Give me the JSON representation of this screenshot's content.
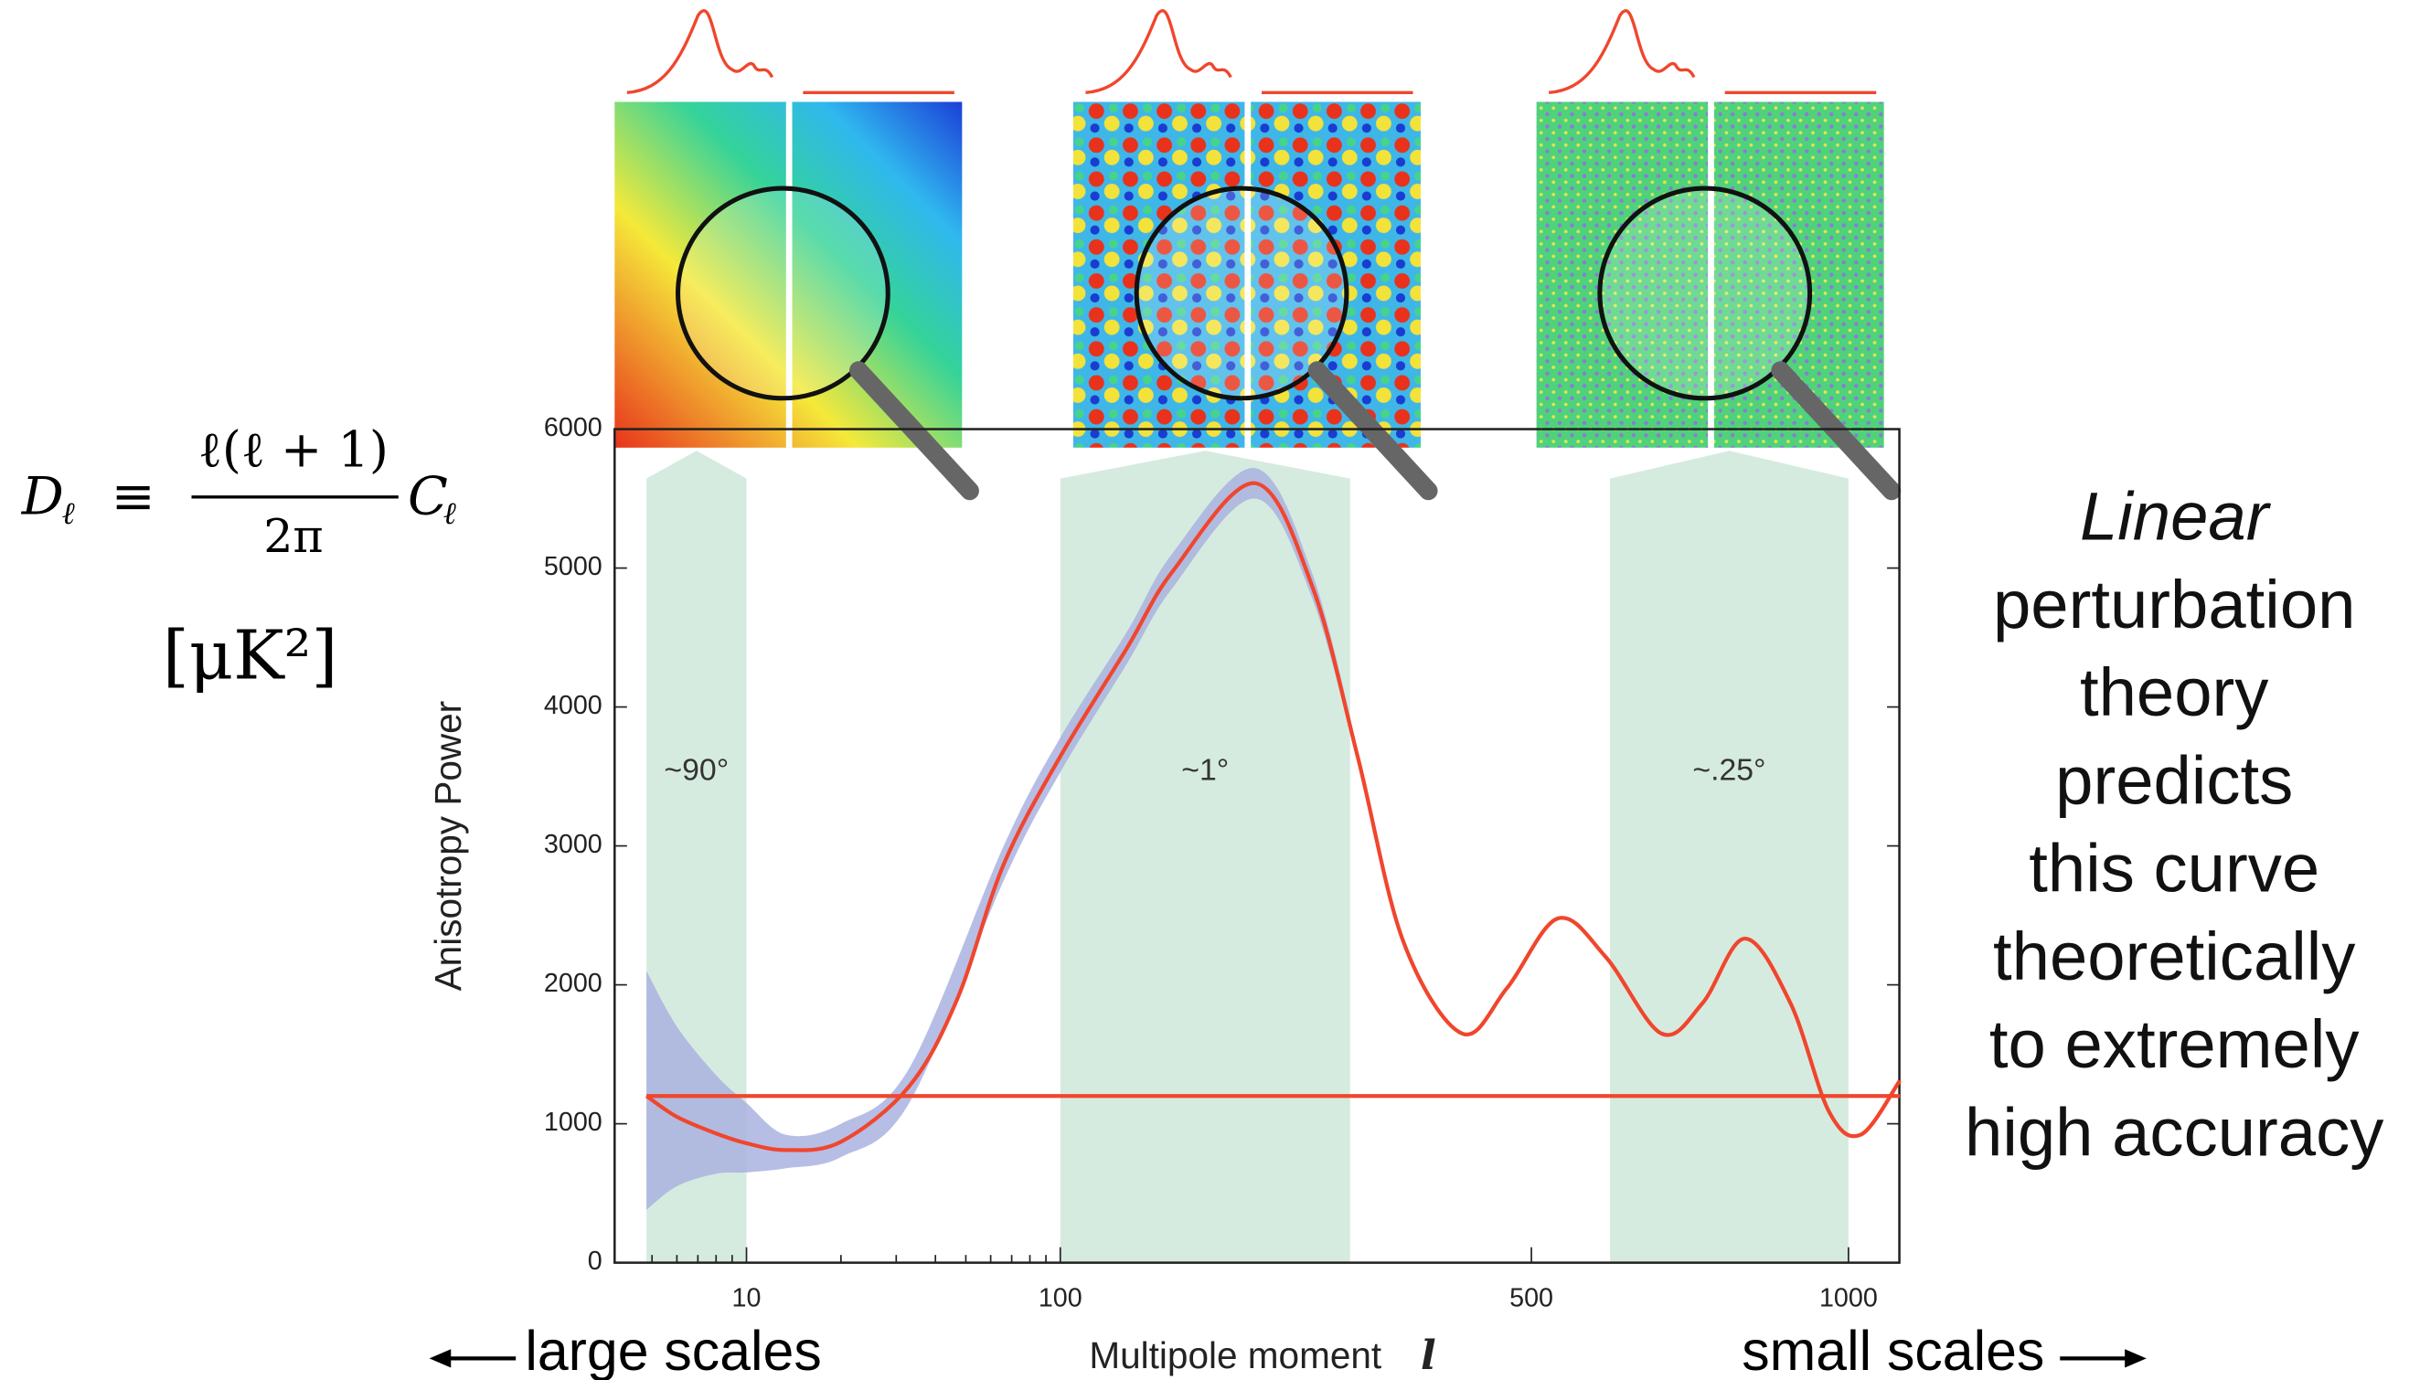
{
  "formula": {
    "lhs": "D",
    "lhs_sub": "ℓ",
    "equiv": "≡",
    "numerator": "ℓ(ℓ + 1)",
    "denominator": "2π",
    "rhs": "C",
    "rhs_sub": "ℓ",
    "units": "[μK²]"
  },
  "side_text": {
    "emphasis": "Linear",
    "lines": [
      "perturbation",
      "theory",
      "predicts",
      "this curve",
      "theoretically",
      "to extremely",
      "high accuracy"
    ]
  },
  "scale_labels": {
    "left": "large scales",
    "right": "small scales"
  },
  "chart_data": {
    "type": "line",
    "ylabel": "Anisotropy Power",
    "xlabel": "Multipole moment",
    "xlabel_symbol": "l",
    "xscale": "log-power",
    "xlim": [
      3.8,
      1100
    ],
    "xticks": [
      10,
      100,
      500,
      1000
    ],
    "xminorticks": [
      5,
      6,
      7,
      8,
      9,
      20,
      30,
      40,
      50,
      60,
      70,
      80,
      90
    ],
    "ylim": [
      0,
      6000
    ],
    "yticks": [
      0,
      1000,
      2000,
      3000,
      4000,
      5000,
      6000
    ],
    "series": [
      {
        "color": "#f0462d",
        "x": [
          4.8,
          6,
          8,
          10,
          13.4,
          20,
          33,
          47,
          66,
          100,
          135,
          163,
          221,
          268,
          309,
          354,
          417,
          470,
          534,
          599,
          680,
          744,
          814,
          893,
          963,
          1024,
          1101
        ],
        "values": [
          1200,
          1050,
          930,
          860,
          811,
          870,
          1270,
          1900,
          2867,
          3644,
          4422,
          4978,
          5611,
          4867,
          3644,
          2311,
          1650,
          1978,
          2478,
          2200,
          1650,
          1867,
          2333,
          1867,
          1089,
          922,
          1311
        ]
      },
      {
        "color": "#f0462d",
        "x": [
          4.8,
          1101
        ],
        "values": [
          1200,
          1200
        ]
      }
    ],
    "band": {
      "color": "#aab3e0",
      "x": [
        4.8,
        6,
        8,
        10,
        13.4,
        20,
        33,
        66,
        100,
        135,
        163,
        221,
        268,
        309
      ],
      "lower": [
        380,
        550,
        640,
        650,
        680,
        760,
        1150,
        2750,
        3530,
        4310,
        4860,
        5500,
        4780,
        3600
      ],
      "upper": [
        2100,
        1700,
        1350,
        1150,
        920,
        1000,
        1400,
        3000,
        3780,
        4540,
        5110,
        5720,
        4960,
        3700
      ]
    },
    "region_color": "#d6ebdf",
    "regions": [
      {
        "x": [
          4.8,
          10
        ],
        "label": "~90°"
      },
      {
        "x": [
          100,
          302
        ],
        "label": "~1°"
      },
      {
        "x": [
          605,
          1000
        ],
        "label": "~.25°"
      }
    ]
  }
}
